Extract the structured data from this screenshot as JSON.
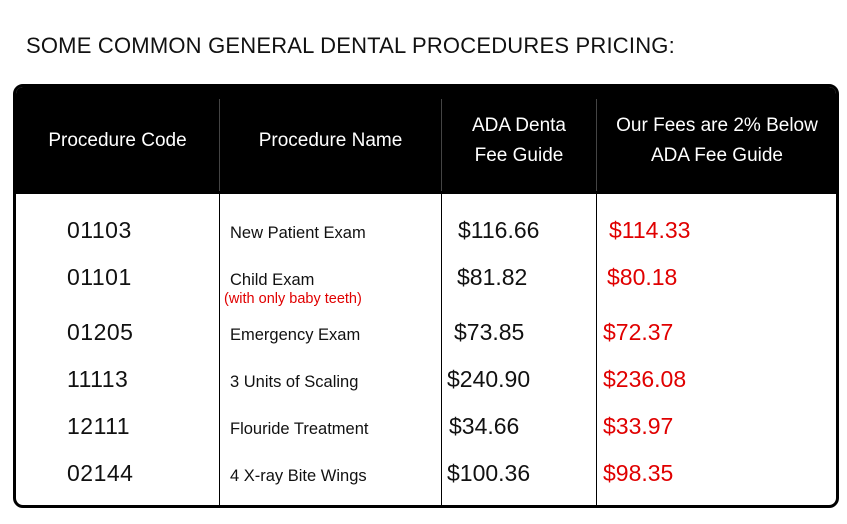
{
  "heading": "SOME COMMON GENERAL DENTAL PROCEDURES PRICING:",
  "columns": {
    "code": "Procedure Code",
    "name": "Procedure Name",
    "ada": "ADA Denta\nFee Guide",
    "fee": "Our Fees are 2% Below\nADA Fee Guide"
  },
  "rows": [
    {
      "code": "01103",
      "name": "New Patient Exam",
      "note": "",
      "ada": "$116.66",
      "fee": "$114.33"
    },
    {
      "code": "01101",
      "name": "Child Exam",
      "note": "(with only baby teeth)",
      "ada": "$81.82",
      "fee": "$80.18"
    },
    {
      "code": "01205",
      "name": "Emergency Exam",
      "note": "",
      "ada": "$73.85",
      "fee": "$72.37"
    },
    {
      "code": "11113",
      "name": "3 Units of Scaling",
      "note": "",
      "ada": "$240.90",
      "fee": "$236.08"
    },
    {
      "code": "12111",
      "name": "Flouride Treatment",
      "note": "",
      "ada": "$34.66",
      "fee": "$33.97"
    },
    {
      "code": "02144",
      "name": "4 X-ray Bite Wings",
      "note": "",
      "ada": "$100.36",
      "fee": "$98.35"
    }
  ],
  "colors": {
    "header_bg": "#000000",
    "header_text": "#ffffff",
    "fee_text": "#e00000",
    "body_text": "#111111"
  }
}
